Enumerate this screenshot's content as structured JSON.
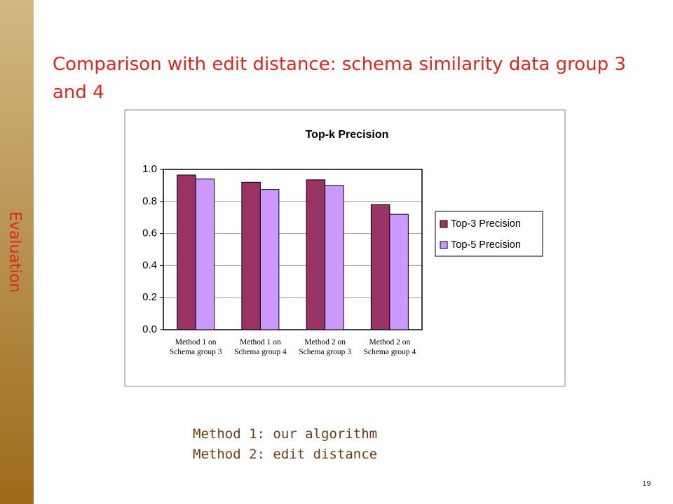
{
  "slide": {
    "side_label": "Evaluation",
    "title": "Comparison with edit distance: schema similarity data group 3 and 4",
    "notes": [
      "Method 1: our algorithm",
      "Method 2: edit distance"
    ],
    "page_number": "19"
  },
  "chart_data": {
    "type": "bar",
    "title": "Top-k Precision",
    "categories": [
      "Method 1 on Schema group 3",
      "Method 1 on Schema group 4",
      "Method 2 on Schema group 3",
      "Method 2 on Schema group 4"
    ],
    "series": [
      {
        "name": "Top-3 Precision",
        "color": "#993366",
        "values": [
          0.965,
          0.92,
          0.935,
          0.78
        ]
      },
      {
        "name": "Top-5 Precision",
        "color": "#cc99ff",
        "values": [
          0.94,
          0.875,
          0.9,
          0.72
        ]
      }
    ],
    "ylim": [
      0,
      1
    ],
    "yticks": [
      {
        "value": 0,
        "label": "0.0"
      },
      0.2,
      0.4,
      0.6,
      0.8,
      {
        "value": 1,
        "label": "1.0"
      }
    ],
    "grid": true,
    "legend": "right"
  }
}
